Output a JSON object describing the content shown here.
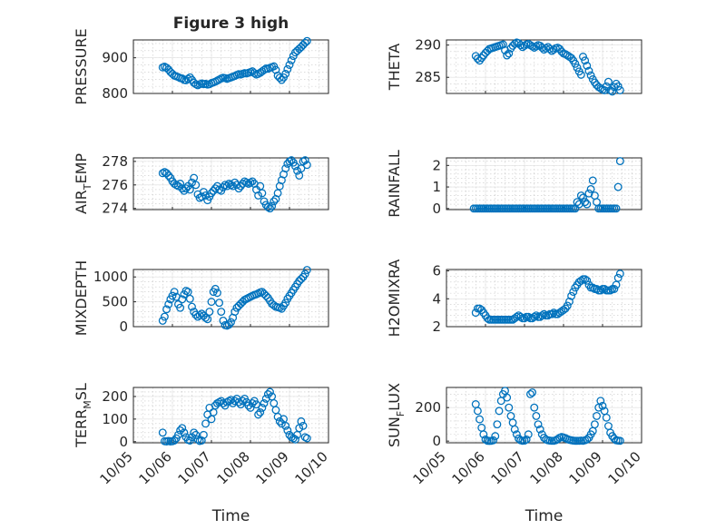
{
  "figure": {
    "title": "Figure 3 high",
    "xlabel": "Time",
    "xticks": [
      "10/05",
      "10/06",
      "10/07",
      "10/08",
      "10/09",
      "10/10"
    ],
    "marker_color": "#0072BD"
  },
  "chart_data": [
    {
      "type": "scatter",
      "ylabel": "PRESSURE",
      "yticks": [
        800,
        900
      ],
      "ylim": [
        800,
        950
      ],
      "grid": true,
      "title": "Figure 3 high",
      "x": [
        5.75,
        5.8,
        5.85,
        5.9,
        5.95,
        6.0,
        6.05,
        6.1,
        6.15,
        6.2,
        6.25,
        6.3,
        6.35,
        6.4,
        6.45,
        6.5,
        6.55,
        6.6,
        6.65,
        6.7,
        6.75,
        6.8,
        6.85,
        6.9,
        6.95,
        7.0,
        7.05,
        7.1,
        7.15,
        7.2,
        7.25,
        7.3,
        7.35,
        7.4,
        7.45,
        7.5,
        7.55,
        7.6,
        7.65,
        7.7,
        7.75,
        7.8,
        7.85,
        7.9,
        7.95,
        8.0,
        8.05,
        8.1,
        8.15,
        8.2,
        8.25,
        8.3,
        8.35,
        8.4,
        8.45,
        8.5,
        8.55,
        8.6,
        8.65,
        8.7,
        8.75,
        8.8,
        8.85,
        8.9,
        8.95,
        9.0,
        9.05,
        9.1,
        9.15,
        9.2,
        9.25,
        9.3,
        9.35,
        9.4,
        9.45
      ],
      "y": [
        873,
        875,
        872,
        867,
        860,
        855,
        850,
        848,
        846,
        843,
        842,
        838,
        837,
        841,
        845,
        838,
        830,
        826,
        823,
        826,
        828,
        826,
        827,
        825,
        826,
        829,
        831,
        833,
        836,
        839,
        842,
        844,
        843,
        841,
        843,
        845,
        847,
        849,
        852,
        854,
        853,
        855,
        857,
        856,
        858,
        860,
        862,
        857,
        853,
        855,
        858,
        862,
        866,
        870,
        869,
        872,
        874,
        876,
        866,
        850,
        844,
        838,
        845,
        855,
        868,
        880,
        893,
        905,
        915,
        920,
        925,
        930,
        936,
        942,
        947
      ]
    },
    {
      "type": "scatter",
      "ylabel": "THETA",
      "yticks": [
        285,
        290
      ],
      "ylim": [
        282.5,
        290.8
      ],
      "grid": true,
      "x": [
        5.75,
        5.8,
        5.85,
        5.9,
        5.95,
        6.0,
        6.05,
        6.1,
        6.15,
        6.2,
        6.25,
        6.3,
        6.35,
        6.4,
        6.45,
        6.5,
        6.55,
        6.6,
        6.65,
        6.7,
        6.75,
        6.8,
        6.85,
        6.9,
        6.95,
        7.0,
        7.05,
        7.1,
        7.15,
        7.2,
        7.25,
        7.3,
        7.35,
        7.4,
        7.45,
        7.5,
        7.55,
        7.6,
        7.65,
        7.7,
        7.75,
        7.8,
        7.85,
        7.9,
        7.95,
        8.0,
        8.05,
        8.1,
        8.15,
        8.2,
        8.25,
        8.3,
        8.35,
        8.4,
        8.45,
        8.5,
        8.55,
        8.6,
        8.65,
        8.7,
        8.75,
        8.8,
        8.85,
        8.9,
        8.95,
        9.0,
        9.05,
        9.1,
        9.15,
        9.2,
        9.25,
        9.3,
        9.35,
        9.4,
        9.45
      ],
      "y": [
        288.3,
        287.9,
        287.6,
        288.0,
        288.4,
        288.8,
        289.1,
        289.4,
        289.5,
        289.6,
        289.7,
        289.8,
        289.9,
        290.0,
        290.1,
        289.2,
        288.4,
        288.7,
        289.5,
        289.9,
        290.2,
        290.4,
        290.3,
        290.0,
        289.7,
        289.9,
        290.1,
        290.2,
        290.0,
        289.8,
        289.6,
        289.8,
        290.0,
        289.9,
        289.6,
        289.3,
        289.5,
        289.7,
        289.4,
        289.1,
        289.3,
        289.5,
        289.6,
        289.4,
        289.0,
        288.7,
        288.6,
        288.4,
        288.2,
        288.0,
        287.6,
        287.1,
        286.5,
        285.9,
        285.4,
        288.2,
        287.6,
        286.8,
        286.0,
        285.3,
        284.7,
        284.2,
        283.8,
        283.5,
        283.3,
        283.1,
        283.0,
        283.6,
        284.3,
        283.0,
        282.8,
        283.5,
        284.0,
        283.6,
        283.0
      ]
    },
    {
      "type": "scatter",
      "ylabel": "AIR_TEMP",
      "yticks": [
        274,
        276,
        278
      ],
      "ylim": [
        273.9,
        278.3
      ],
      "grid": true,
      "x": [
        5.75,
        5.8,
        5.85,
        5.9,
        5.95,
        6.0,
        6.05,
        6.1,
        6.15,
        6.2,
        6.25,
        6.3,
        6.35,
        6.4,
        6.45,
        6.5,
        6.55,
        6.6,
        6.65,
        6.7,
        6.75,
        6.8,
        6.85,
        6.9,
        6.95,
        7.0,
        7.05,
        7.1,
        7.15,
        7.2,
        7.25,
        7.3,
        7.35,
        7.4,
        7.45,
        7.5,
        7.55,
        7.6,
        7.65,
        7.7,
        7.75,
        7.8,
        7.85,
        7.9,
        7.95,
        8.0,
        8.05,
        8.1,
        8.15,
        8.2,
        8.25,
        8.3,
        8.35,
        8.4,
        8.45,
        8.5,
        8.55,
        8.6,
        8.65,
        8.7,
        8.75,
        8.8,
        8.85,
        8.9,
        8.95,
        9.0,
        9.05,
        9.1,
        9.15,
        9.2,
        9.25,
        9.3,
        9.35,
        9.4,
        9.45
      ],
      "y": [
        277.0,
        277.1,
        277.0,
        276.8,
        276.6,
        276.3,
        276.1,
        276.0,
        275.9,
        276.1,
        275.7,
        275.5,
        275.7,
        275.9,
        275.6,
        276.2,
        276.6,
        276.0,
        275.2,
        274.9,
        275.0,
        275.4,
        275.1,
        274.7,
        275.0,
        275.3,
        275.5,
        275.7,
        275.9,
        275.6,
        275.5,
        275.8,
        276.0,
        275.9,
        276.1,
        276.0,
        275.9,
        276.2,
        276.0,
        275.7,
        275.9,
        276.1,
        276.3,
        276.2,
        276.1,
        276.2,
        276.3,
        276.1,
        275.6,
        275.1,
        275.9,
        275.3,
        274.6,
        274.3,
        274.1,
        274.0,
        274.2,
        274.6,
        274.8,
        275.3,
        275.9,
        276.4,
        276.9,
        277.4,
        277.8,
        278.0,
        278.1,
        277.9,
        277.6,
        277.2,
        276.8,
        277.4,
        278.0,
        278.1,
        277.7
      ]
    },
    {
      "type": "scatter",
      "ylabel": "RAINFALL",
      "yticks": [
        0,
        1,
        2
      ],
      "ylim": [
        -0.05,
        2.35
      ],
      "grid": true,
      "x": [
        5.7,
        5.75,
        5.8,
        5.85,
        5.9,
        5.95,
        6.0,
        6.05,
        6.1,
        6.15,
        6.2,
        6.25,
        6.3,
        6.35,
        6.4,
        6.45,
        6.5,
        6.55,
        6.6,
        6.65,
        6.7,
        6.75,
        6.8,
        6.85,
        6.9,
        6.95,
        7.0,
        7.05,
        7.1,
        7.15,
        7.2,
        7.25,
        7.3,
        7.35,
        7.4,
        7.45,
        7.5,
        7.55,
        7.6,
        7.65,
        7.7,
        7.75,
        7.8,
        7.85,
        7.9,
        7.95,
        8.0,
        8.05,
        8.1,
        8.15,
        8.2,
        8.25,
        8.3,
        8.35,
        8.4,
        8.45,
        8.5,
        8.55,
        8.6,
        8.65,
        8.7,
        8.75,
        8.8,
        8.85,
        8.9,
        8.95,
        9.0,
        9.05,
        9.1,
        9.15,
        9.2,
        9.25,
        9.3,
        9.35,
        9.4,
        9.45
      ],
      "y": [
        0,
        0,
        0,
        0,
        0,
        0,
        0,
        0,
        0,
        0,
        0,
        0,
        0,
        0,
        0,
        0,
        0,
        0,
        0,
        0,
        0,
        0,
        0,
        0,
        0,
        0,
        0,
        0,
        0,
        0,
        0,
        0,
        0,
        0,
        0,
        0,
        0,
        0,
        0,
        0,
        0,
        0,
        0,
        0,
        0,
        0,
        0,
        0,
        0,
        0,
        0,
        0,
        0,
        0.3,
        0.2,
        0.6,
        0.5,
        0.3,
        0.2,
        0.7,
        0.9,
        1.3,
        0.6,
        0.3,
        0,
        0,
        0,
        0,
        0,
        0,
        0,
        0,
        0,
        0,
        1.0,
        2.2
      ]
    },
    {
      "type": "scatter",
      "ylabel": "MIXDEPTH",
      "yticks": [
        0,
        500,
        1000
      ],
      "ylim": [
        0,
        1150
      ],
      "grid": true,
      "x": [
        5.75,
        5.8,
        5.85,
        5.9,
        5.95,
        6.0,
        6.05,
        6.1,
        6.15,
        6.2,
        6.25,
        6.3,
        6.35,
        6.4,
        6.45,
        6.5,
        6.55,
        6.6,
        6.65,
        6.7,
        6.75,
        6.8,
        6.85,
        6.9,
        6.95,
        7.0,
        7.05,
        7.1,
        7.15,
        7.2,
        7.25,
        7.3,
        7.35,
        7.4,
        7.45,
        7.5,
        7.55,
        7.6,
        7.65,
        7.7,
        7.75,
        7.8,
        7.85,
        7.9,
        7.95,
        8.0,
        8.05,
        8.1,
        8.15,
        8.2,
        8.25,
        8.3,
        8.35,
        8.4,
        8.45,
        8.5,
        8.55,
        8.6,
        8.65,
        8.7,
        8.75,
        8.8,
        8.85,
        8.9,
        8.95,
        9.0,
        9.05,
        9.1,
        9.15,
        9.2,
        9.25,
        9.3,
        9.35,
        9.4,
        9.45
      ],
      "y": [
        120,
        200,
        350,
        450,
        550,
        620,
        700,
        600,
        450,
        380,
        550,
        650,
        720,
        700,
        560,
        400,
        300,
        240,
        200,
        230,
        260,
        220,
        180,
        150,
        300,
        500,
        700,
        760,
        680,
        480,
        300,
        120,
        30,
        20,
        40,
        90,
        180,
        300,
        380,
        420,
        460,
        500,
        540,
        560,
        580,
        600,
        620,
        640,
        650,
        670,
        690,
        700,
        660,
        620,
        580,
        520,
        460,
        430,
        400,
        390,
        380,
        360,
        420,
        480,
        560,
        620,
        680,
        740,
        800,
        860,
        920,
        960,
        1000,
        1060,
        1140
      ]
    },
    {
      "type": "scatter",
      "ylabel": "H2OMIXRA",
      "yticks": [
        2,
        4,
        6
      ],
      "ylim": [
        2,
        6.1
      ],
      "grid": true,
      "x": [
        5.75,
        5.8,
        5.85,
        5.9,
        5.95,
        6.0,
        6.05,
        6.1,
        6.15,
        6.2,
        6.25,
        6.3,
        6.35,
        6.4,
        6.45,
        6.5,
        6.55,
        6.6,
        6.65,
        6.7,
        6.75,
        6.8,
        6.85,
        6.9,
        6.95,
        7.0,
        7.05,
        7.1,
        7.15,
        7.2,
        7.25,
        7.3,
        7.35,
        7.4,
        7.45,
        7.5,
        7.55,
        7.6,
        7.65,
        7.7,
        7.75,
        7.8,
        7.85,
        7.9,
        7.95,
        8.0,
        8.05,
        8.1,
        8.15,
        8.2,
        8.25,
        8.3,
        8.35,
        8.4,
        8.45,
        8.5,
        8.55,
        8.6,
        8.65,
        8.7,
        8.75,
        8.8,
        8.85,
        8.9,
        8.95,
        9.0,
        9.05,
        9.1,
        9.15,
        9.2,
        9.25,
        9.3,
        9.35,
        9.4,
        9.45
      ],
      "y": [
        3.0,
        3.3,
        3.3,
        3.2,
        3.0,
        2.8,
        2.6,
        2.5,
        2.5,
        2.5,
        2.5,
        2.5,
        2.5,
        2.5,
        2.5,
        2.5,
        2.5,
        2.5,
        2.5,
        2.5,
        2.6,
        2.7,
        2.8,
        2.7,
        2.6,
        2.6,
        2.7,
        2.7,
        2.6,
        2.6,
        2.7,
        2.8,
        2.7,
        2.7,
        2.8,
        2.9,
        2.8,
        2.8,
        2.9,
        2.9,
        3.0,
        2.9,
        2.9,
        3.0,
        3.1,
        3.2,
        3.3,
        3.5,
        3.8,
        4.2,
        4.5,
        4.8,
        5.0,
        5.2,
        5.3,
        5.4,
        5.4,
        5.3,
        5.0,
        4.8,
        4.8,
        4.7,
        4.7,
        4.6,
        4.6,
        4.7,
        4.7,
        4.6,
        4.6,
        4.6,
        4.7,
        4.7,
        5.0,
        5.5,
        5.8
      ]
    },
    {
      "type": "scatter",
      "ylabel": "TERR_MSL",
      "yticks": [
        0,
        100,
        200
      ],
      "ylim": [
        -5,
        240
      ],
      "grid": true,
      "x": [
        5.75,
        5.8,
        5.85,
        5.9,
        5.95,
        6.0,
        6.05,
        6.1,
        6.15,
        6.2,
        6.25,
        6.3,
        6.35,
        6.4,
        6.45,
        6.5,
        6.55,
        6.6,
        6.65,
        6.7,
        6.75,
        6.8,
        6.85,
        6.9,
        6.95,
        7.0,
        7.05,
        7.1,
        7.15,
        7.2,
        7.25,
        7.3,
        7.35,
        7.4,
        7.45,
        7.5,
        7.55,
        7.6,
        7.65,
        7.7,
        7.75,
        7.8,
        7.85,
        7.9,
        7.95,
        8.0,
        8.05,
        8.1,
        8.15,
        8.2,
        8.25,
        8.3,
        8.35,
        8.4,
        8.45,
        8.5,
        8.55,
        8.6,
        8.65,
        8.7,
        8.75,
        8.8,
        8.85,
        8.9,
        8.95,
        9.0,
        9.05,
        9.1,
        9.15,
        9.2,
        9.25,
        9.3,
        9.35,
        9.4,
        9.45
      ],
      "y": [
        40,
        2,
        1,
        3,
        1,
        2,
        5,
        15,
        30,
        50,
        60,
        40,
        20,
        8,
        5,
        20,
        40,
        30,
        10,
        3,
        5,
        30,
        80,
        120,
        150,
        100,
        130,
        160,
        170,
        175,
        180,
        170,
        160,
        175,
        180,
        185,
        170,
        180,
        190,
        175,
        165,
        180,
        190,
        175,
        160,
        150,
        170,
        180,
        165,
        120,
        130,
        150,
        170,
        190,
        210,
        220,
        200,
        170,
        140,
        110,
        90,
        80,
        100,
        70,
        50,
        30,
        20,
        15,
        10,
        30,
        60,
        90,
        70,
        20,
        15
      ]
    },
    {
      "type": "scatter",
      "ylabel": "SUN_FLUX",
      "yticks": [
        0,
        200
      ],
      "ylim": [
        -10,
        320
      ],
      "grid": true,
      "x": [
        5.75,
        5.8,
        5.85,
        5.9,
        5.95,
        6.0,
        6.05,
        6.1,
        6.15,
        6.2,
        6.25,
        6.3,
        6.35,
        6.4,
        6.45,
        6.5,
        6.55,
        6.6,
        6.65,
        6.7,
        6.75,
        6.8,
        6.85,
        6.9,
        6.95,
        7.0,
        7.05,
        7.1,
        7.15,
        7.2,
        7.25,
        7.3,
        7.35,
        7.4,
        7.45,
        7.5,
        7.55,
        7.6,
        7.65,
        7.7,
        7.75,
        7.8,
        7.85,
        7.9,
        7.95,
        8.0,
        8.05,
        8.1,
        8.15,
        8.2,
        8.25,
        8.3,
        8.35,
        8.4,
        8.45,
        8.5,
        8.55,
        8.6,
        8.65,
        8.7,
        8.75,
        8.8,
        8.85,
        8.9,
        8.95,
        9.0,
        9.05,
        9.1,
        9.15,
        9.2,
        9.25,
        9.3,
        9.35,
        9.4,
        9.45
      ],
      "y": [
        220,
        180,
        130,
        80,
        40,
        10,
        2,
        1,
        2,
        5,
        30,
        100,
        180,
        240,
        280,
        300,
        260,
        200,
        150,
        110,
        70,
        40,
        15,
        5,
        2,
        3,
        10,
        40,
        280,
        290,
        200,
        150,
        100,
        70,
        40,
        20,
        10,
        5,
        3,
        2,
        2,
        5,
        12,
        20,
        25,
        22,
        18,
        12,
        8,
        5,
        3,
        2,
        2,
        2,
        3,
        2,
        5,
        10,
        20,
        40,
        60,
        100,
        150,
        200,
        240,
        210,
        180,
        140,
        90,
        50,
        30,
        15,
        5,
        3,
        2
      ]
    }
  ]
}
